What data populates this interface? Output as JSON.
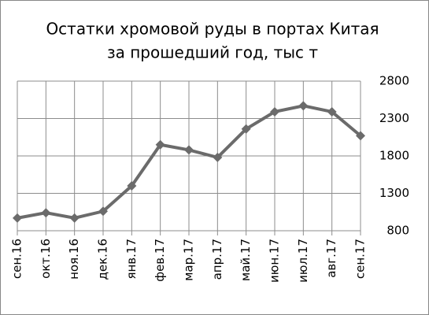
{
  "chart_data": {
    "type": "line",
    "title": [
      "Остатки хромовой руды в портах Китая",
      "за прошедший год, тыс т"
    ],
    "categories": [
      "сен.16",
      "окт.16",
      "ноя.16",
      "дек.16",
      "янв.17",
      "фев.17",
      "мар.17",
      "апр.17",
      "май.17",
      "июн.17",
      "июл.17",
      "авг.17",
      "сен.17"
    ],
    "series": [
      {
        "color": "#6b6b6b",
        "values": [
          970,
          1040,
          970,
          1060,
          1400,
          1950,
          1880,
          1780,
          2160,
          2390,
          2470,
          2390,
          2070
        ]
      }
    ],
    "ylim": [
      800,
      2800
    ],
    "yticks": [
      800,
      1300,
      1800,
      2300,
      2800
    ],
    "grid": true
  }
}
